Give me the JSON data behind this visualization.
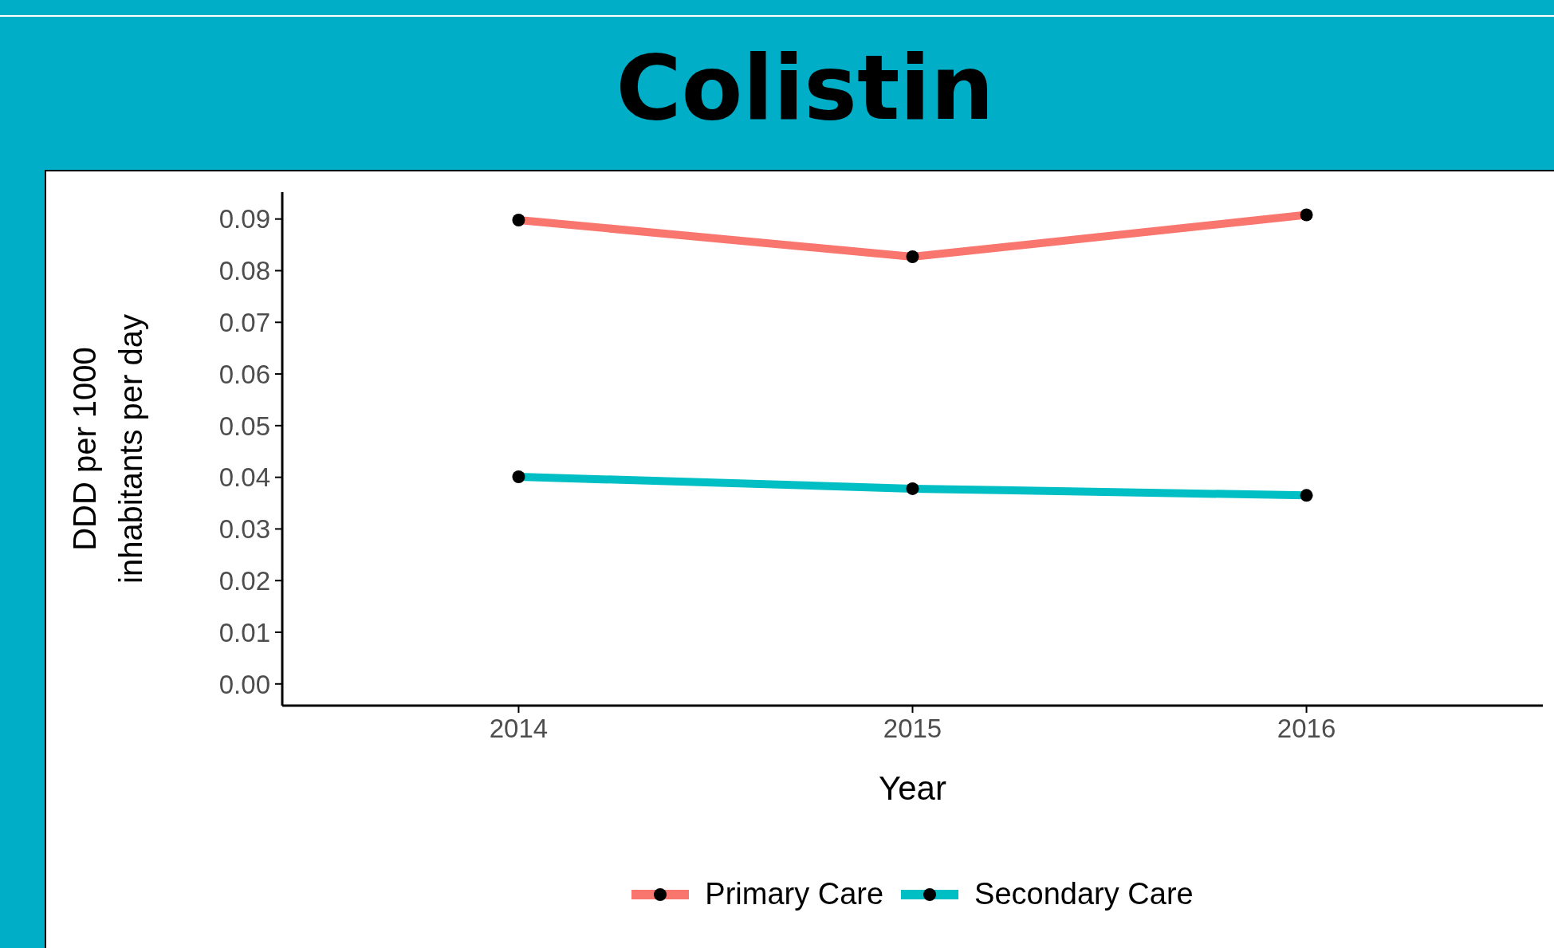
{
  "chart_data": {
    "type": "line",
    "title": "Colistin",
    "xlabel": "Year",
    "ylabel": "DDD per 1000\ninhabitants per day",
    "x": [
      2014,
      2015,
      2016
    ],
    "series": [
      {
        "name": "Primary Care",
        "color": "#f8766d",
        "values": [
          0.0898,
          0.0827,
          0.0908
        ]
      },
      {
        "name": "Secondary Care",
        "color": "#00bfc4",
        "values": [
          0.0401,
          0.0378,
          0.0365
        ]
      }
    ],
    "xlim": [
      2013.4,
      2016.6
    ],
    "xticks": [
      2014,
      2015,
      2016
    ],
    "ylim": [
      -0.0042,
      0.0952
    ],
    "yticks": [
      {
        "value": 0,
        "label": "0.00"
      },
      {
        "value": 0.01,
        "label": "0.01"
      },
      {
        "value": 0.02,
        "label": "0.02"
      },
      {
        "value": 0.03,
        "label": "0.03"
      },
      {
        "value": 0.04,
        "label": "0.04"
      },
      {
        "value": 0.05,
        "label": "0.05"
      },
      {
        "value": 0.06,
        "label": "0.06"
      },
      {
        "value": 0.07,
        "label": "0.07"
      },
      {
        "value": 0.08,
        "label": "0.08"
      },
      {
        "value": 0.09,
        "label": "0.09"
      }
    ],
    "grid": false,
    "legend": "bottom",
    "marker": "circle",
    "line_style": "solid"
  }
}
